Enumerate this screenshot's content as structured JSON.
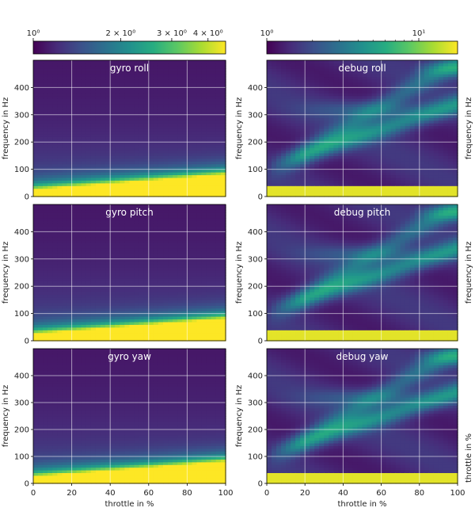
{
  "colorbars": [
    {
      "labels": [
        {
          "text": "10⁰",
          "v": 1
        },
        {
          "text": "2 × 10⁰",
          "v": 2
        },
        {
          "text": "3 × 10⁰",
          "v": 3
        },
        {
          "text": "4 × 10⁰",
          "v": 4
        }
      ],
      "min": 1,
      "max": 4.6,
      "scale": "log",
      "colormap": "viridis"
    },
    {
      "labels": [
        {
          "text": "10⁰",
          "v": 1
        },
        {
          "text": "10¹",
          "v": 10
        }
      ],
      "min": 1,
      "max": 18,
      "scale": "log",
      "colormap": "viridis"
    }
  ],
  "chart_data": [
    {
      "type": "heatmap",
      "title": "gyro roll",
      "ylabel": "frequency in Hz",
      "xlim": [
        0,
        100
      ],
      "ylim": [
        0,
        500
      ],
      "yticks": [
        0,
        100,
        200,
        300,
        400
      ],
      "xticks": [],
      "grid": true,
      "profile": "gyro"
    },
    {
      "type": "heatmap",
      "title": "debug roll",
      "ylabel": "frequency in Hz",
      "xlim": [
        0,
        100
      ],
      "ylim": [
        0,
        500
      ],
      "yticks": [
        0,
        100,
        200,
        300,
        400
      ],
      "xticks": [],
      "grid": true,
      "profile": "debug"
    },
    {
      "type": "heatmap",
      "title": "gyro pitch",
      "ylabel": "frequency in Hz",
      "xlim": [
        0,
        100
      ],
      "ylim": [
        0,
        500
      ],
      "yticks": [
        0,
        100,
        200,
        300,
        400
      ],
      "xticks": [],
      "grid": true,
      "profile": "gyro"
    },
    {
      "type": "heatmap",
      "title": "debug pitch",
      "ylabel": "frequency in Hz",
      "xlim": [
        0,
        100
      ],
      "ylim": [
        0,
        500
      ],
      "yticks": [
        0,
        100,
        200,
        300,
        400
      ],
      "xticks": [],
      "grid": true,
      "profile": "debug"
    },
    {
      "type": "heatmap",
      "title": "gyro yaw",
      "ylabel": "frequency in Hz",
      "xlabel": "throttle in %",
      "xlim": [
        0,
        100
      ],
      "ylim": [
        0,
        500
      ],
      "yticks": [
        0,
        100,
        200,
        300,
        400
      ],
      "xticks": [
        0,
        20,
        40,
        60,
        80,
        100
      ],
      "grid": true,
      "profile": "gyro"
    },
    {
      "type": "heatmap",
      "title": "debug yaw",
      "ylabel": "frequency in Hz",
      "xlabel": "throttle in %",
      "xlim": [
        0,
        100
      ],
      "ylim": [
        0,
        500
      ],
      "yticks": [
        0,
        100,
        200,
        300,
        400
      ],
      "xticks": [
        0,
        20,
        40,
        60,
        80,
        100
      ],
      "grid": true,
      "profile": "debug"
    }
  ],
  "right_labels": [
    "frequency in Hz",
    "frequency in Hz",
    "throttle in %"
  ]
}
